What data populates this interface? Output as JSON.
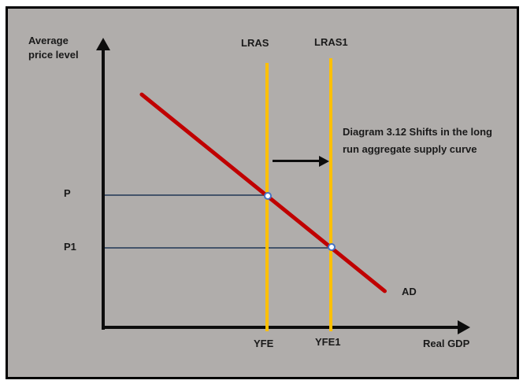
{
  "diagram": {
    "caption": "Diagram 3.12 Shifts in the long run aggregate supply curve",
    "y_axis_label": "Average price level",
    "x_axis_label": "Real GDP",
    "curves": {
      "lras": {
        "label": "LRAS",
        "x_axis_tick": "YFE",
        "color": "#FFC000"
      },
      "lras1": {
        "label": "LRAS1",
        "x_axis_tick": "YFE1",
        "color": "#FFC000"
      },
      "ad": {
        "label": "AD",
        "color": "#C00000"
      }
    },
    "price_levels": {
      "p": "P",
      "p1": "P1"
    },
    "shift_arrow": {
      "direction": "right",
      "from": "LRAS",
      "to": "LRAS1"
    },
    "colors": {
      "background": "#b0adab",
      "frame_border": "#000000",
      "axis": "#0d0d0d",
      "price_guide_line": "#44546A",
      "intersection_ring": "#4472C4",
      "intersection_fill": "#ffffff"
    }
  }
}
